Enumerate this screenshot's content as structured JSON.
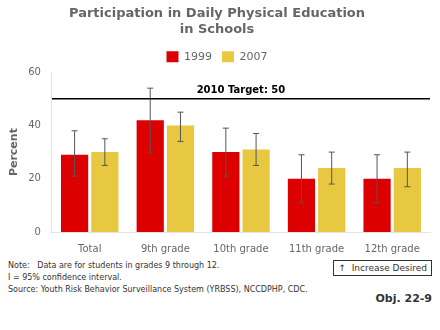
{
  "chart_data": {
    "type": "bar",
    "title": "Participation in Daily Physical Education\nin Schools",
    "ylabel": "Percent",
    "categories": [
      "Total",
      "9th grade",
      "10th grade",
      "11th grade",
      "12th grade"
    ],
    "series": [
      {
        "name": "1999",
        "color": "#dd0000",
        "values": [
          29,
          42,
          30,
          20,
          20
        ],
        "err_lo": [
          8,
          12,
          9,
          9,
          9
        ],
        "err_hi": [
          9,
          12,
          9,
          9,
          9
        ]
      },
      {
        "name": "2007",
        "color": "#e8c840",
        "values": [
          30,
          40,
          31,
          24,
          24
        ],
        "err_lo": [
          5,
          6,
          6,
          6,
          7
        ],
        "err_hi": [
          5,
          5,
          6,
          6,
          6
        ]
      }
    ],
    "target_line": {
      "value": 50,
      "label": "2010 Target: 50"
    },
    "annotations": [
      "↑  Increase Desired",
      "Note:   Data are for students in grades 9 through 12.",
      "I = 95% confidence interval.",
      "Source: Youth Risk Behavior Surveillance System (YRBSS), NCCDPHP, CDC.",
      "Obj. 22-9"
    ],
    "ylim": [
      0,
      60
    ],
    "yticks": [
      0,
      20,
      40,
      60
    ],
    "grid": false,
    "legend": "top"
  }
}
